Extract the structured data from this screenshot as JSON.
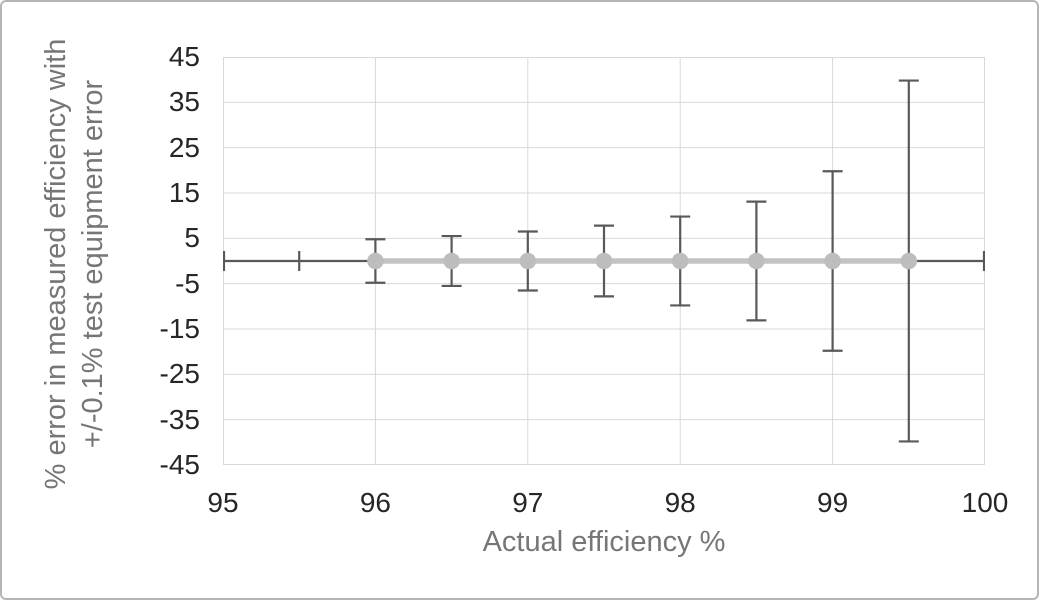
{
  "chart_data": {
    "type": "scatter",
    "xlabel": "Actual efficiency %",
    "ylabel": "% error in measured efficiency with +/-0.1% test equipment error",
    "ylabel_lines": [
      "% error in measured efficiency with",
      "+/-0.1% test equipment error"
    ],
    "xlim": [
      95,
      100
    ],
    "ylim": [
      -45,
      45
    ],
    "x_ticks": [
      95,
      96,
      97,
      98,
      99,
      100
    ],
    "y_ticks": [
      45,
      35,
      25,
      15,
      5,
      -5,
      -15,
      -25,
      -35,
      -45
    ],
    "grid": true,
    "legend": false,
    "series": [
      {
        "x": [
          96,
          96.5,
          97,
          97.5,
          98,
          98.5,
          99,
          99.5
        ],
        "y": [
          0,
          0,
          0,
          0,
          0,
          0,
          0,
          0
        ],
        "y_error": [
          4.8,
          5.5,
          6.5,
          7.8,
          9.8,
          13.1,
          19.8,
          39.8
        ],
        "x_error": 0.5
      }
    ],
    "zero_error_line": {
      "y": 0,
      "x_from": 95,
      "x_to": 100,
      "cap_x": [
        95,
        95.5,
        100
      ]
    },
    "colors": {
      "series": "#c3c3c3",
      "marker": "#bdbdbd",
      "error_bar": "#595959",
      "gridline": "#d9d9d9",
      "tick_label": "#262626",
      "axis_title": "#767676",
      "background": "#ffffff",
      "page_border": "#b5b5b5"
    }
  }
}
